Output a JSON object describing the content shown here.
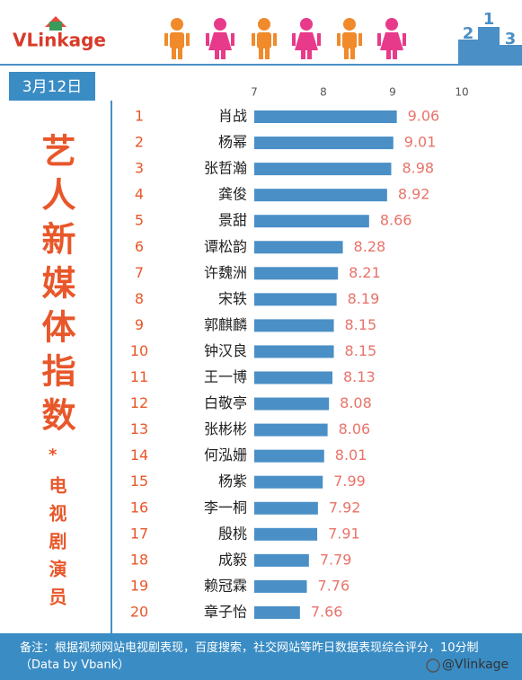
{
  "header": {
    "logo": "VLinkage",
    "podium": [
      "2",
      "1",
      "3"
    ]
  },
  "date": "3月12日",
  "side_title": "艺人新媒体指数",
  "note_mark": "*",
  "side_subtitle": "电视剧演员",
  "chart_data": {
    "type": "bar",
    "ranks": [
      1,
      2,
      3,
      4,
      5,
      6,
      7,
      8,
      9,
      10,
      11,
      12,
      13,
      14,
      15,
      16,
      17,
      18,
      19,
      20
    ],
    "categories": [
      "肖战",
      "杨幂",
      "张哲瀚",
      "龚俊",
      "景甜",
      "谭松韵",
      "许魏洲",
      "宋轶",
      "郭麒麟",
      "钟汉良",
      "王一博",
      "白敬亭",
      "张彬彬",
      "何泓姗",
      "杨紫",
      "李一桐",
      "殷桃",
      "成毅",
      "赖冠霖",
      "章子怡"
    ],
    "values": [
      9.06,
      9.01,
      8.98,
      8.92,
      8.66,
      8.28,
      8.21,
      8.19,
      8.15,
      8.15,
      8.13,
      8.08,
      8.06,
      8.01,
      7.99,
      7.92,
      7.91,
      7.79,
      7.76,
      7.66
    ],
    "color": "#4a8fc6",
    "value_label_color": "#e8736a",
    "rank_color": "#e8572a",
    "xlim": [
      7,
      10
    ],
    "xticks": [
      7,
      8,
      9,
      10
    ]
  },
  "footer": {
    "note": "备注：根据视频网站电视剧表现，百度搜索，社交网站等昨日数据表现综合评分，10分制（Data by Vbank）",
    "source": "@Vlinkage"
  }
}
